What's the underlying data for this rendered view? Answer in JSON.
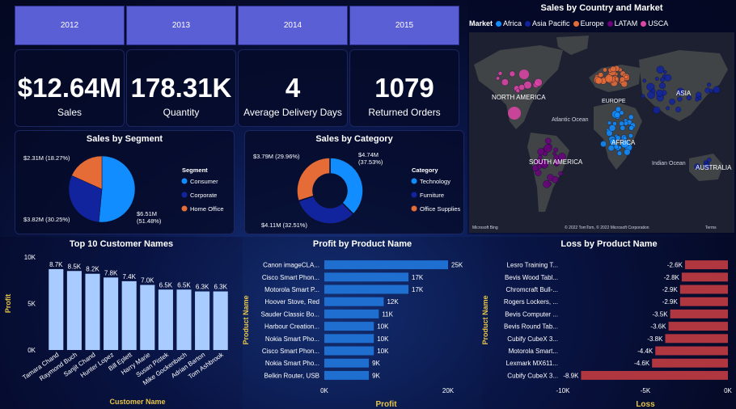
{
  "filters": {
    "years": [
      "2012",
      "2013",
      "2014",
      "2015"
    ]
  },
  "kpis": [
    {
      "value": "$12.64M",
      "label": "Sales"
    },
    {
      "value": "178.31K",
      "label": "Quantity"
    },
    {
      "value": "4",
      "label": "Average Delivery Days"
    },
    {
      "value": "1079",
      "label": "Returned Orders"
    }
  ],
  "map": {
    "title": "Sales by Country and Market",
    "legend_title": "Market",
    "markets": [
      {
        "name": "Africa",
        "color": "#118dff"
      },
      {
        "name": "Asia Pacific",
        "color": "#12239e"
      },
      {
        "name": "Europe",
        "color": "#e66c37"
      },
      {
        "name": "LATAM",
        "color": "#6b007b"
      },
      {
        "name": "USCA",
        "color": "#e044a7"
      }
    ],
    "labels": {
      "north_america": "NORTH AMERICA",
      "south_america": "SOUTH AMERICA",
      "europe": "EUROPE",
      "africa": "AFRICA",
      "asia": "ASIA",
      "australia": "AUSTRALIA",
      "atlantic": "Atlantic Ocean",
      "indian": "Indian Ocean"
    },
    "attribution": "Microsoft Bing",
    "copyright": "© 2022 TomTom, © 2022 Microsoft Corporation",
    "terms": "Terms"
  },
  "chart_data": [
    {
      "id": "segment",
      "type": "pie",
      "title": "Sales by Segment",
      "legend_title": "Segment",
      "slices": [
        {
          "name": "Consumer",
          "value": 6.51,
          "percent": 51.48,
          "label": "$6.51M (51.48%)",
          "color": "#118dff"
        },
        {
          "name": "Corporate",
          "value": 3.82,
          "percent": 30.25,
          "label": "$3.82M (30.25%)",
          "color": "#12239e"
        },
        {
          "name": "Home Office",
          "value": 2.31,
          "percent": 18.27,
          "label": "$2.31M (18.27%)",
          "color": "#e66c37"
        }
      ]
    },
    {
      "id": "category",
      "type": "pie",
      "subtype": "donut",
      "title": "Sales by Category",
      "legend_title": "Category",
      "slices": [
        {
          "name": "Technology",
          "value": 4.74,
          "percent": 37.53,
          "label": "$4.74M (37.53%)",
          "color": "#118dff"
        },
        {
          "name": "Furniture",
          "value": 4.11,
          "percent": 32.51,
          "label": "$4.11M (32.51%)",
          "color": "#12239e"
        },
        {
          "name": "Office Supplies",
          "value": 3.79,
          "percent": 29.96,
          "label": "$3.79M (29.96%)",
          "color": "#e66c37"
        }
      ]
    },
    {
      "id": "customers",
      "type": "bar",
      "title": "Top 10 Customer Names",
      "xlabel": "Customer Name",
      "ylabel": "Profit",
      "ylim": [
        0,
        10000
      ],
      "yticks": [
        "0K",
        "5K",
        "10K"
      ],
      "categories": [
        "Tamara Chand",
        "Raymond Buch",
        "Sanjit Chand",
        "Hunter Lopez",
        "Bill Eplett",
        "Harry Marie",
        "Susan Pistek",
        "Mike Gockenbach",
        "Adrian Barton",
        "Tom Ashbrook"
      ],
      "values": [
        8700,
        8500,
        8200,
        7800,
        7400,
        7000,
        6500,
        6500,
        6300,
        6300
      ],
      "labels": [
        "8.7K",
        "8.5K",
        "8.2K",
        "7.8K",
        "7.4K",
        "7.0K",
        "6.5K",
        "6.5K",
        "6.3K",
        "6.3K"
      ],
      "color": "#a8ccff"
    },
    {
      "id": "profit",
      "type": "bar",
      "orientation": "horizontal",
      "title": "Profit by Product Name",
      "xlabel": "Profit",
      "ylabel": "Product Name",
      "xlim": [
        0,
        25000
      ],
      "xticks": [
        "0K",
        "20K"
      ],
      "categories": [
        "Canon imageCLA...",
        "Cisco Smart Phon...",
        "Motorola Smart P...",
        "Hoover Stove, Red",
        "Sauder Classic Bo...",
        "Harbour Creation...",
        "Nokia Smart Pho...",
        "Cisco Smart Phon...",
        "Nokia Smart Pho...",
        "Belkin Router, USB"
      ],
      "values": [
        25000,
        17000,
        17000,
        12000,
        11000,
        10000,
        10000,
        10000,
        9000,
        9000
      ],
      "labels": [
        "25K",
        "17K",
        "17K",
        "12K",
        "11K",
        "10K",
        "10K",
        "10K",
        "9K",
        "9K"
      ],
      "color": "#1f6fd1"
    },
    {
      "id": "loss",
      "type": "bar",
      "orientation": "horizontal",
      "title": "Loss by Product Name",
      "xlabel": "Loss",
      "ylabel": "Product Name",
      "xlim": [
        -10000,
        0
      ],
      "xticks": [
        "-10K",
        "-5K",
        "0K"
      ],
      "categories": [
        "Lesro Training T...",
        "Bevis Wood Tabl...",
        "Chromcraft Bull-...",
        "Rogers Lockers, ...",
        "Bevis Computer ...",
        "Bevis Round Tab...",
        "Cubify CubeX 3...",
        "Motorola Smart...",
        "Lexmark MX611...",
        "Cubify CubeX 3..."
      ],
      "values": [
        -2600,
        -2800,
        -2900,
        -2900,
        -3500,
        -3600,
        -3800,
        -4400,
        -4600,
        -8900
      ],
      "labels": [
        "-2.6K",
        "-2.8K",
        "-2.9K",
        "-2.9K",
        "-3.5K",
        "-3.6K",
        "-3.8K",
        "-4.4K",
        "-4.6K",
        "-8.9K"
      ],
      "color": "#b0373f"
    }
  ]
}
